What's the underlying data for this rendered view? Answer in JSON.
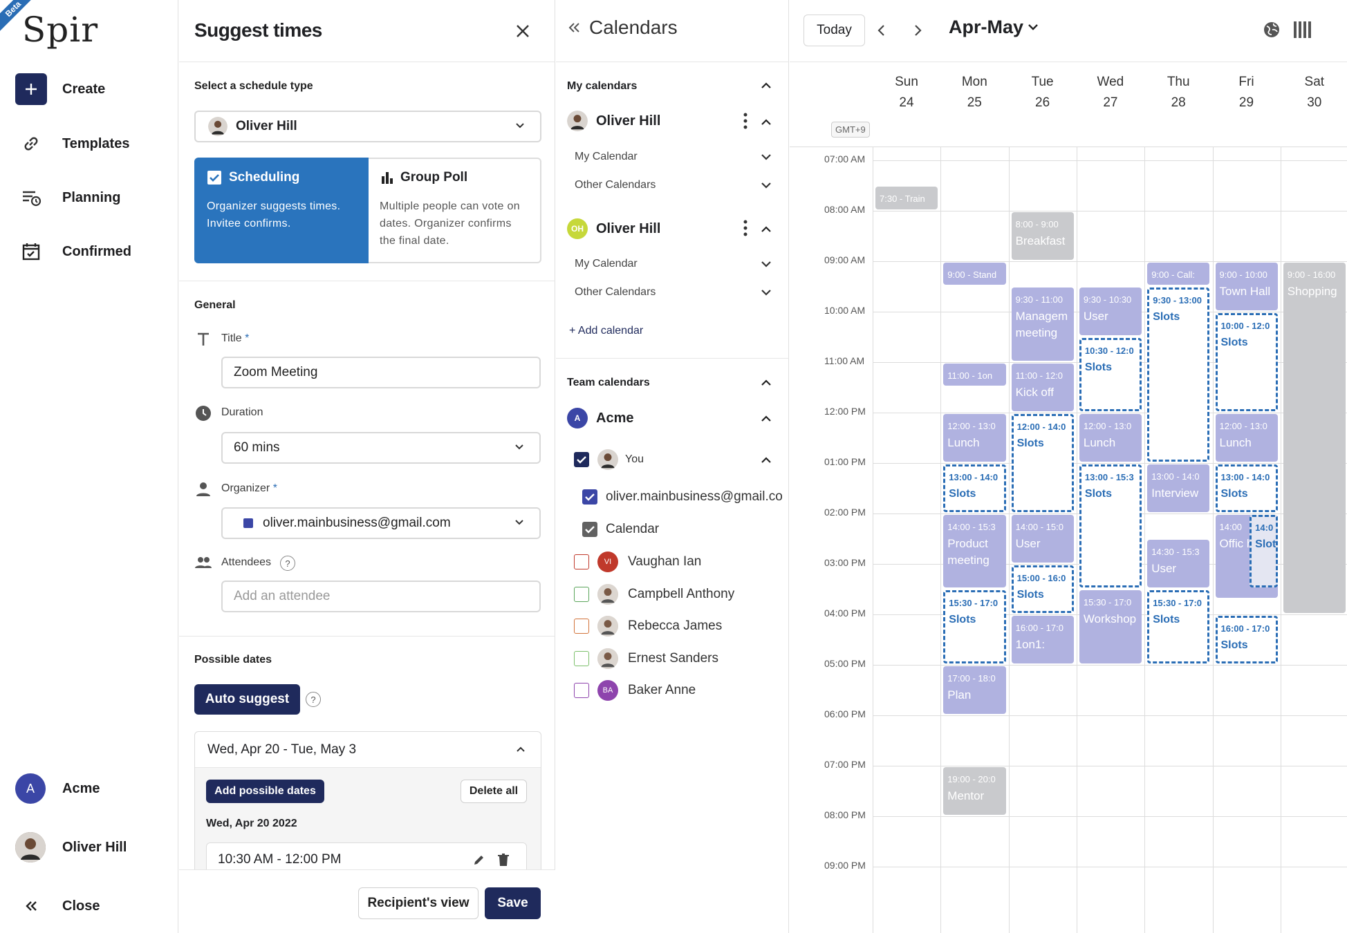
{
  "nav": {
    "beta": "Beta",
    "logo": "Spir",
    "create": "Create",
    "templates": "Templates",
    "planning": "Planning",
    "confirmed": "Confirmed",
    "team": "Acme",
    "team_initial": "A",
    "user": "Oliver Hill",
    "close": "Close"
  },
  "suggest": {
    "title": "Suggest times",
    "schedule_type_label": "Select a schedule type",
    "selected_user": "Oliver Hill",
    "scheduling_title": "Scheduling",
    "scheduling_desc": "Organizer suggests times. Invitee confirms.",
    "poll_title": "Group Poll",
    "poll_desc": "Multiple people can vote on dates. Organizer confirms the final date.",
    "general": "General",
    "title_label": "Title",
    "title_value": "Zoom Meeting",
    "duration_label": "Duration",
    "duration_value": "60 mins",
    "organizer_label": "Organizer",
    "organizer_value": "oliver.mainbusiness@gmail.com",
    "attendees_label": "Attendees",
    "attendee_placeholder": "Add an attendee",
    "possible_dates": "Possible dates",
    "auto_suggest": "Auto suggest",
    "range": "Wed, Apr 20 - Tue, May 3",
    "add_dates": "Add possible dates",
    "delete_all": "Delete all",
    "date_heading": "Wed, Apr 20 2022",
    "slot": "10:30 AM - 12:00 PM",
    "recipient_view": "Recipient's view",
    "save": "Save",
    "required_mark": "*",
    "help_mark": "?"
  },
  "calendars": {
    "title": "Calendars",
    "my_calendars": "My calendars",
    "user1": "Oliver Hill",
    "user2": "Oliver Hill",
    "user2_initials": "OH",
    "my_calendar": "My Calendar",
    "other_calendars": "Other Calendars",
    "add_calendar": "+ Add calendar",
    "team_calendars": "Team calendars",
    "team": "Acme",
    "team_initial": "A",
    "you": "You",
    "email": "oliver.mainbusiness@gmail.com",
    "calendar": "Calendar",
    "members": [
      {
        "name": "Vaughan Ian",
        "initials": "VI",
        "color": "#c0392b"
      },
      {
        "name": "Campbell Anthony",
        "initials": "",
        "color": "#5aa55a"
      },
      {
        "name": "Rebecca James",
        "initials": "",
        "color": "#d2733a"
      },
      {
        "name": "Ernest Sanders",
        "initials": "",
        "color": "#7cc06b"
      },
      {
        "name": "Baker Anne",
        "initials": "BA",
        "color": "#8e44ad"
      }
    ]
  },
  "grid": {
    "today": "Today",
    "month": "Apr-May",
    "gmt": "GMT+9",
    "days": [
      {
        "dow": "Sun",
        "num": "24"
      },
      {
        "dow": "Mon",
        "num": "25"
      },
      {
        "dow": "Tue",
        "num": "26"
      },
      {
        "dow": "Wed",
        "num": "27"
      },
      {
        "dow": "Thu",
        "num": "28"
      },
      {
        "dow": "Fri",
        "num": "29"
      },
      {
        "dow": "Sat",
        "num": "30"
      }
    ],
    "times": [
      "07:00 AM",
      "08:00 AM",
      "09:00 AM",
      "10:00 AM",
      "11:00 AM",
      "12:00 PM",
      "01:00 PM",
      "02:00 PM",
      "03:00 PM",
      "04:00 PM",
      "05:00 PM",
      "06:00 PM",
      "07:00 PM",
      "08:00 PM",
      "09:00 PM"
    ],
    "events": [
      {
        "day": 0,
        "start": 7.5,
        "end": 8.0,
        "kind": "g",
        "t1": "7:30 - Train",
        "t2": ""
      },
      {
        "day": 1,
        "start": 9.0,
        "end": 9.5,
        "kind": "p",
        "t1": "9:00 - Stand",
        "t2": ""
      },
      {
        "day": 1,
        "start": 11.0,
        "end": 11.5,
        "kind": "p",
        "t1": "11:00 - 1on",
        "t2": ""
      },
      {
        "day": 1,
        "start": 12.0,
        "end": 13.0,
        "kind": "p",
        "t1": "12:00 - 13:0",
        "t2": "Lunch"
      },
      {
        "day": 1,
        "start": 13.0,
        "end": 14.0,
        "kind": "s",
        "t1": "13:00 - 14:0",
        "t2": "Slots"
      },
      {
        "day": 1,
        "start": 14.0,
        "end": 15.5,
        "kind": "p",
        "t1": "14:00 - 15:3",
        "t2": "Product meeting"
      },
      {
        "day": 1,
        "start": 15.5,
        "end": 17.0,
        "kind": "s",
        "t1": "15:30 - 17:0",
        "t2": "Slots"
      },
      {
        "day": 1,
        "start": 17.0,
        "end": 18.0,
        "kind": "p",
        "t1": "17:00 - 18:0",
        "t2": "Plan"
      },
      {
        "day": 1,
        "start": 19.0,
        "end": 20.0,
        "kind": "g",
        "t1": "19:00 - 20:0",
        "t2": "Mentor"
      },
      {
        "day": 2,
        "start": 8.0,
        "end": 9.0,
        "kind": "g",
        "t1": "8:00 - 9:00",
        "t2": "Breakfast"
      },
      {
        "day": 2,
        "start": 9.5,
        "end": 11.0,
        "kind": "p",
        "t1": "9:30 - 11:00",
        "t2": "Managem meeting"
      },
      {
        "day": 2,
        "start": 11.0,
        "end": 12.0,
        "kind": "p",
        "t1": "11:00 - 12:0",
        "t2": "Kick off"
      },
      {
        "day": 2,
        "start": 12.0,
        "end": 14.0,
        "kind": "s",
        "t1": "12:00 - 14:0",
        "t2": "Slots"
      },
      {
        "day": 2,
        "start": 14.0,
        "end": 15.0,
        "kind": "p",
        "t1": "14:00 - 15:0",
        "t2": "User"
      },
      {
        "day": 2,
        "start": 15.0,
        "end": 16.0,
        "kind": "s",
        "t1": "15:00 - 16:0",
        "t2": "Slots"
      },
      {
        "day": 2,
        "start": 16.0,
        "end": 17.0,
        "kind": "p",
        "t1": "16:00 - 17:0",
        "t2": "1on1:"
      },
      {
        "day": 3,
        "start": 9.5,
        "end": 10.5,
        "kind": "p",
        "t1": "9:30 - 10:30",
        "t2": "User"
      },
      {
        "day": 3,
        "start": 10.5,
        "end": 12.0,
        "kind": "s",
        "t1": "10:30 - 12:0",
        "t2": "Slots"
      },
      {
        "day": 3,
        "start": 12.0,
        "end": 13.0,
        "kind": "p",
        "t1": "12:00 - 13:0",
        "t2": "Lunch"
      },
      {
        "day": 3,
        "start": 13.0,
        "end": 15.5,
        "kind": "s",
        "t1": "13:00 - 15:3",
        "t2": "Slots"
      },
      {
        "day": 3,
        "start": 15.5,
        "end": 17.0,
        "kind": "p",
        "t1": "15:30 - 17:0",
        "t2": "Workshop"
      },
      {
        "day": 4,
        "start": 9.0,
        "end": 9.5,
        "kind": "p",
        "t1": "9:00 - Call:",
        "t2": ""
      },
      {
        "day": 4,
        "start": 9.5,
        "end": 13.0,
        "kind": "s",
        "t1": "9:30 - 13:00",
        "t2": "Slots"
      },
      {
        "day": 4,
        "start": 13.0,
        "end": 14.0,
        "kind": "p",
        "t1": "13:00 - 14:0",
        "t2": "Interview"
      },
      {
        "day": 4,
        "start": 14.5,
        "end": 15.5,
        "kind": "p",
        "t1": "14:30 - 15:3",
        "t2": "User"
      },
      {
        "day": 4,
        "start": 15.5,
        "end": 17.0,
        "kind": "s",
        "t1": "15:30 - 17:0",
        "t2": "Slots"
      },
      {
        "day": 5,
        "start": 9.0,
        "end": 10.0,
        "kind": "p",
        "t1": "9:00 - 10:00",
        "t2": "Town Hall"
      },
      {
        "day": 5,
        "start": 10.0,
        "end": 12.0,
        "kind": "s",
        "t1": "10:00 - 12:0",
        "t2": "Slots"
      },
      {
        "day": 5,
        "start": 12.0,
        "end": 13.0,
        "kind": "p",
        "t1": "12:00 - 13:0",
        "t2": "Lunch"
      },
      {
        "day": 5,
        "start": 13.0,
        "end": 14.0,
        "kind": "s",
        "t1": "13:00 - 14:0",
        "t2": "Slots"
      },
      {
        "day": 5,
        "start": 14.0,
        "end": 15.7,
        "kind": "p",
        "t1": "14:00",
        "t2": "Offic hour"
      },
      {
        "day": 5,
        "start": 14.0,
        "end": 15.5,
        "kind": "s",
        "t1": "14:0",
        "t2": "Slot",
        "half": true
      },
      {
        "day": 5,
        "start": 16.0,
        "end": 17.0,
        "kind": "s",
        "t1": "16:00 - 17:0",
        "t2": "Slots"
      },
      {
        "day": 6,
        "start": 9.0,
        "end": 16.0,
        "kind": "g",
        "t1": "9:00 - 16:00",
        "t2": "Shopping"
      }
    ]
  }
}
